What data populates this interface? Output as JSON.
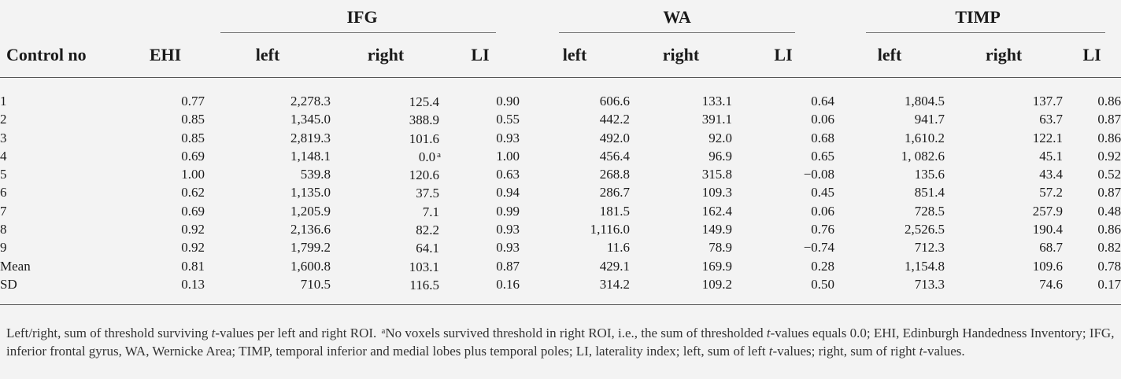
{
  "header": {
    "groups": {
      "ifg": "IFG",
      "wa": "WA",
      "timp": "TIMP"
    },
    "columns": {
      "control": "Control no",
      "ehi": "EHI",
      "ifg_left": "left",
      "ifg_right": "right",
      "ifg_li": "LI",
      "wa_left": "left",
      "wa_right": "right",
      "wa_li": "LI",
      "timp_left": "left",
      "timp_right": "right",
      "timp_li": "LI"
    }
  },
  "rows": [
    {
      "id": "1",
      "ehi": "0.77",
      "ifg_left": "2,278.3",
      "ifg_right": "125.4",
      "ifg_right_sup": "",
      "ifg_li": "0.90",
      "wa_left": "606.6",
      "wa_right": "133.1",
      "wa_li": "0.64",
      "timp_left": "1,804.5",
      "timp_right": "137.7",
      "timp_li": "0.86"
    },
    {
      "id": "2",
      "ehi": "0.85",
      "ifg_left": "1,345.0",
      "ifg_right": "388.9",
      "ifg_right_sup": "",
      "ifg_li": "0.55",
      "wa_left": "442.2",
      "wa_right": "391.1",
      "wa_li": "0.06",
      "timp_left": "941.7",
      "timp_right": "63.7",
      "timp_li": "0.87"
    },
    {
      "id": "3",
      "ehi": "0.85",
      "ifg_left": "2,819.3",
      "ifg_right": "101.6",
      "ifg_right_sup": "",
      "ifg_li": "0.93",
      "wa_left": "492.0",
      "wa_right": "92.0",
      "wa_li": "0.68",
      "timp_left": "1,610.2",
      "timp_right": "122.1",
      "timp_li": "0.86"
    },
    {
      "id": "4",
      "ehi": "0.69",
      "ifg_left": "1,148.1",
      "ifg_right": "0.0",
      "ifg_right_sup": "a",
      "ifg_li": "1.00",
      "wa_left": "456.4",
      "wa_right": "96.9",
      "wa_li": "0.65",
      "timp_left": "1, 082.6",
      "timp_right": "45.1",
      "timp_li": "0.92"
    },
    {
      "id": "5",
      "ehi": "1.00",
      "ifg_left": "539.8",
      "ifg_right": "120.6",
      "ifg_right_sup": "",
      "ifg_li": "0.63",
      "wa_left": "268.8",
      "wa_right": "315.8",
      "wa_li": "−0.08",
      "timp_left": "135.6",
      "timp_right": "43.4",
      "timp_li": "0.52"
    },
    {
      "id": "6",
      "ehi": "0.62",
      "ifg_left": "1,135.0",
      "ifg_right": "37.5",
      "ifg_right_sup": "",
      "ifg_li": "0.94",
      "wa_left": "286.7",
      "wa_right": "109.3",
      "wa_li": "0.45",
      "timp_left": "851.4",
      "timp_right": "57.2",
      "timp_li": "0.87"
    },
    {
      "id": "7",
      "ehi": "0.69",
      "ifg_left": "1,205.9",
      "ifg_right": "7.1",
      "ifg_right_sup": "",
      "ifg_li": "0.99",
      "wa_left": "181.5",
      "wa_right": "162.4",
      "wa_li": "0.06",
      "timp_left": "728.5",
      "timp_right": "257.9",
      "timp_li": "0.48"
    },
    {
      "id": "8",
      "ehi": "0.92",
      "ifg_left": "2,136.6",
      "ifg_right": "82.2",
      "ifg_right_sup": "",
      "ifg_li": "0.93",
      "wa_left": "1,116.0",
      "wa_right": "149.9",
      "wa_li": "0.76",
      "timp_left": "2,526.5",
      "timp_right": "190.4",
      "timp_li": "0.86"
    },
    {
      "id": "9",
      "ehi": "0.92",
      "ifg_left": "1,799.2",
      "ifg_right": "64.1",
      "ifg_right_sup": "",
      "ifg_li": "0.93",
      "wa_left": "11.6",
      "wa_right": "78.9",
      "wa_li": "−0.74",
      "timp_left": "712.3",
      "timp_right": "68.7",
      "timp_li": "0.82"
    },
    {
      "id": "Mean",
      "ehi": "0.81",
      "ifg_left": "1,600.8",
      "ifg_right": "103.1",
      "ifg_right_sup": "",
      "ifg_li": "0.87",
      "wa_left": "429.1",
      "wa_right": "169.9",
      "wa_li": "0.28",
      "timp_left": "1,154.8",
      "timp_right": "109.6",
      "timp_li": "0.78"
    },
    {
      "id": "SD",
      "ehi": "0.13",
      "ifg_left": "710.5",
      "ifg_right": "116.5",
      "ifg_right_sup": "",
      "ifg_li": "0.16",
      "wa_left": "314.2",
      "wa_right": "109.2",
      "wa_li": "0.50",
      "timp_left": "713.3",
      "timp_right": "74.6",
      "timp_li": "0.17"
    }
  ],
  "footnote": {
    "p1": "Left/right, sum of threshold surviving ",
    "t1": "t",
    "p2": "-values per left and right ROI. ",
    "sup_a": "a",
    "p3": "No voxels survived threshold in right ROI, i.e., the sum of thresholded ",
    "t2": "t",
    "p4": "-values equals 0.0; EHI, Edinburgh Handedness Inventory; IFG, inferior frontal gyrus, WA, Wernicke Area; TIMP, temporal inferior and medial lobes plus temporal poles; LI, laterality index; left, sum of left ",
    "t3": "t",
    "p5": "-values; right, sum of right ",
    "t4": "t",
    "p6": "-values."
  }
}
